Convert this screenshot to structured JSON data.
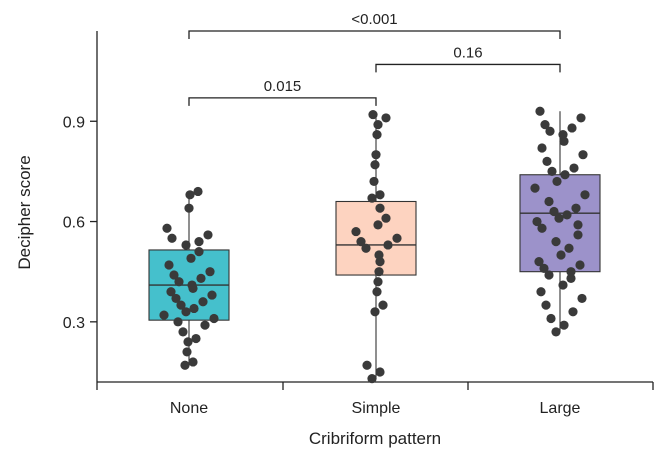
{
  "chart_data": {
    "type": "box",
    "xlabel": "Cribriform pattern",
    "ylabel": "Decipher score",
    "ylim": [
      0.12,
      1.2
    ],
    "yticks": [
      0.3,
      0.6,
      0.9
    ],
    "categories": [
      "None",
      "Simple",
      "Large"
    ],
    "series": [
      {
        "category": "None",
        "color": "#45c0cc",
        "min": 0.17,
        "q1": 0.305,
        "median": 0.41,
        "q3": 0.515,
        "max": 0.69,
        "points": [
          0.17,
          0.18,
          0.21,
          0.24,
          0.25,
          0.27,
          0.29,
          0.3,
          0.31,
          0.32,
          0.33,
          0.34,
          0.35,
          0.36,
          0.37,
          0.38,
          0.39,
          0.4,
          0.41,
          0.42,
          0.43,
          0.44,
          0.45,
          0.47,
          0.49,
          0.51,
          0.53,
          0.54,
          0.55,
          0.56,
          0.58,
          0.64,
          0.68,
          0.69
        ]
      },
      {
        "category": "Simple",
        "color": "#fdd3c0",
        "min": 0.13,
        "q1": 0.44,
        "median": 0.53,
        "q3": 0.66,
        "max": 0.92,
        "points": [
          0.13,
          0.15,
          0.17,
          0.33,
          0.35,
          0.39,
          0.42,
          0.45,
          0.48,
          0.5,
          0.52,
          0.53,
          0.54,
          0.55,
          0.57,
          0.59,
          0.61,
          0.64,
          0.67,
          0.68,
          0.72,
          0.77,
          0.8,
          0.86,
          0.89,
          0.91,
          0.92
        ]
      },
      {
        "category": "Large",
        "color": "#9c92ca",
        "min": 0.27,
        "q1": 0.45,
        "median": 0.625,
        "q3": 0.74,
        "max": 0.93,
        "points": [
          0.27,
          0.29,
          0.31,
          0.33,
          0.35,
          0.37,
          0.39,
          0.41,
          0.43,
          0.44,
          0.45,
          0.46,
          0.47,
          0.48,
          0.5,
          0.52,
          0.54,
          0.56,
          0.58,
          0.59,
          0.6,
          0.61,
          0.62,
          0.63,
          0.64,
          0.66,
          0.68,
          0.7,
          0.72,
          0.74,
          0.75,
          0.76,
          0.78,
          0.8,
          0.82,
          0.84,
          0.86,
          0.87,
          0.88,
          0.89,
          0.91,
          0.93
        ]
      }
    ],
    "comparisons": [
      {
        "from": "None",
        "to": "Simple",
        "label": "0.015",
        "level": 0.97
      },
      {
        "from": "Simple",
        "to": "Large",
        "label": "0.16",
        "level": 1.07
      },
      {
        "from": "None",
        "to": "Large",
        "label": "<0.001",
        "level": 1.17
      }
    ],
    "grid": false,
    "legend": "none"
  }
}
